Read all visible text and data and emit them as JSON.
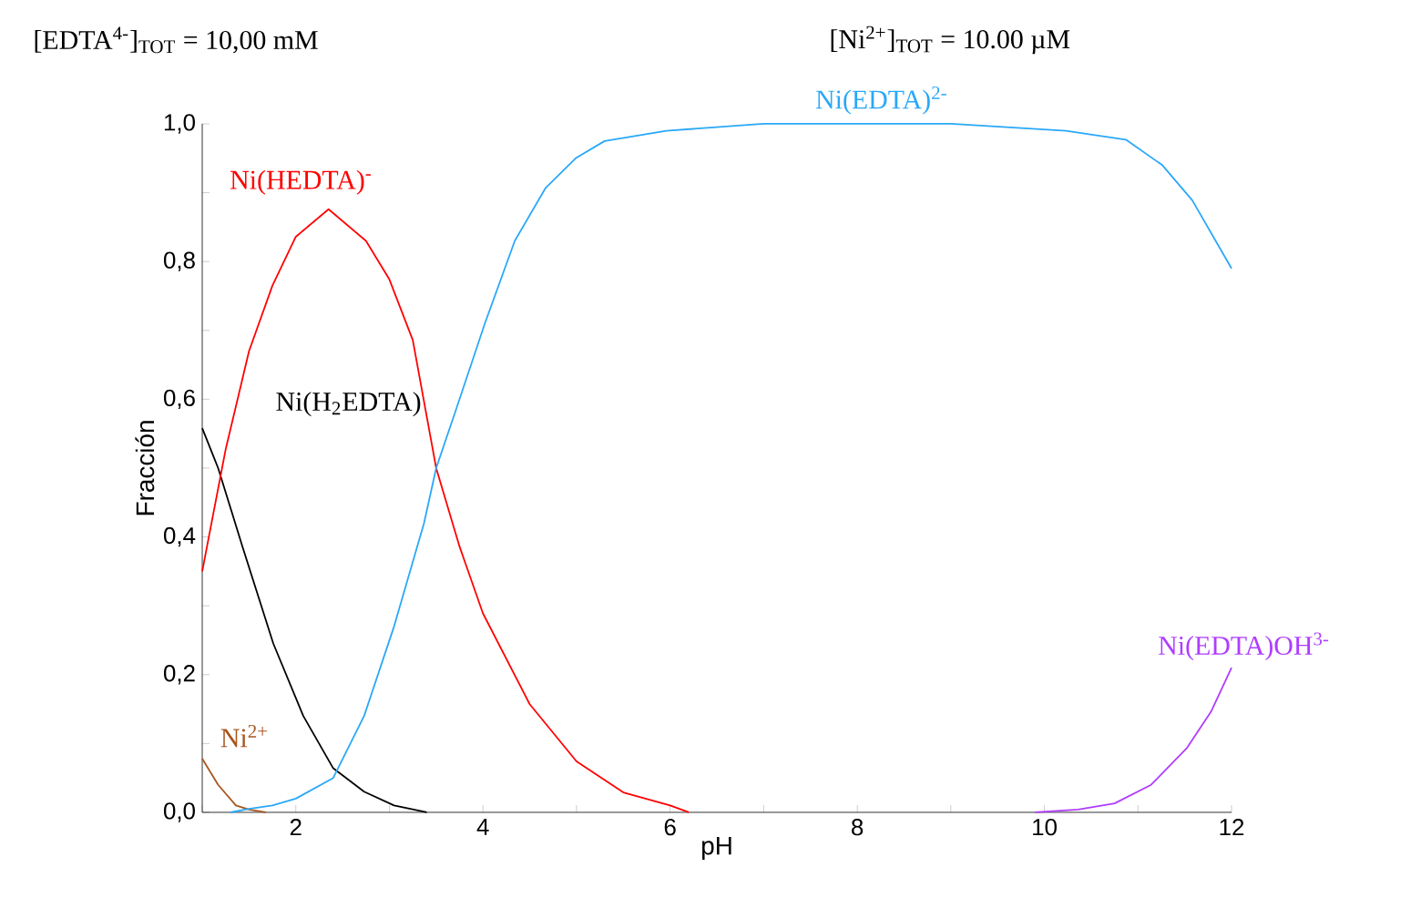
{
  "chart_data": {
    "type": "line",
    "annotations": [
      "[EDTA$^{4-}$]$_{TOT}$ =   10,00 mM",
      "[Ni$^{2+}$]$_{TOT}$ =   10.00 µM"
    ],
    "xlabel": "pH",
    "ylabel": "Fracción",
    "xlim": [
      1,
      12
    ],
    "ylim": [
      0,
      1
    ],
    "xticks": [
      {
        "value": 1,
        "label": null
      },
      2,
      {
        "value": 3,
        "label": null
      },
      4,
      {
        "value": 5,
        "label": null
      },
      6,
      {
        "value": 7,
        "label": null
      },
      8,
      {
        "value": 9,
        "label": null
      },
      10,
      {
        "value": 11,
        "label": null
      },
      12
    ],
    "yticks": [
      {
        "value": 0,
        "label": "0,0"
      },
      {
        "value": 0.1,
        "label": null
      },
      {
        "value": 0.2,
        "label": "0,2"
      },
      {
        "value": 0.3,
        "label": null
      },
      {
        "value": 0.4,
        "label": "0,4"
      },
      {
        "value": 0.5,
        "label": null
      },
      {
        "value": 0.6,
        "label": "0,6"
      },
      {
        "value": 0.7,
        "label": null
      },
      {
        "value": 0.8,
        "label": "0,8"
      },
      {
        "value": 0.9,
        "label": null
      },
      {
        "value": 1.0,
        "label": "1,0"
      }
    ],
    "marker": "none",
    "line_style": "solid",
    "series": [
      {
        "name": "Ni$^{2+}$",
        "color": "#a8561f",
        "x": [
          1.0,
          1.17,
          1.36,
          1.5,
          1.68
        ],
        "values": [
          0.078,
          0.04,
          0.01,
          0.004,
          0.0
        ]
      },
      {
        "name": "Ni(H$_{2}$EDTA)",
        "color": "#000000",
        "x": [
          1.0,
          1.17,
          1.43,
          1.76,
          2.08,
          2.4,
          2.73,
          3.05,
          3.4
        ],
        "values": [
          0.558,
          0.5,
          0.386,
          0.245,
          0.14,
          0.064,
          0.03,
          0.01,
          0.0
        ]
      },
      {
        "name": "Ni(HEDTA)$^{-}$",
        "color": "#ff0000",
        "x": [
          1.0,
          1.25,
          1.5,
          1.75,
          2.0,
          2.35,
          2.75,
          3.0,
          3.25,
          3.5,
          3.75,
          4.0,
          4.5,
          5.0,
          5.5,
          6.0,
          6.2
        ],
        "values": [
          0.35,
          0.527,
          0.67,
          0.765,
          0.836,
          0.876,
          0.83,
          0.774,
          0.686,
          0.5,
          0.386,
          0.289,
          0.157,
          0.074,
          0.029,
          0.01,
          0.0
        ]
      },
      {
        "name": "Ni(EDTA)$^{2-}$",
        "color": "#2aa8f8",
        "x": [
          1.3,
          1.5,
          1.75,
          2.0,
          2.4,
          2.73,
          3.05,
          3.37,
          3.5,
          3.7,
          4.02,
          4.34,
          4.67,
          4.99,
          5.3,
          5.96,
          7.0,
          8.0,
          9.0,
          10.23,
          10.87,
          11.26,
          11.58,
          12.0
        ],
        "values": [
          0.0,
          0.005,
          0.01,
          0.02,
          0.05,
          0.14,
          0.27,
          0.42,
          0.5,
          0.58,
          0.71,
          0.83,
          0.907,
          0.95,
          0.975,
          0.99,
          1.0,
          1.0,
          1.0,
          0.99,
          0.977,
          0.94,
          0.889,
          0.79
        ]
      },
      {
        "name": "Ni(EDTA)OH$^{3-}$",
        "color": "#b03cff",
        "x": [
          9.9,
          10.36,
          10.75,
          11.14,
          11.52,
          11.78,
          12.0
        ],
        "values": [
          0.0,
          0.004,
          0.013,
          0.04,
          0.093,
          0.146,
          0.21
        ]
      }
    ]
  }
}
